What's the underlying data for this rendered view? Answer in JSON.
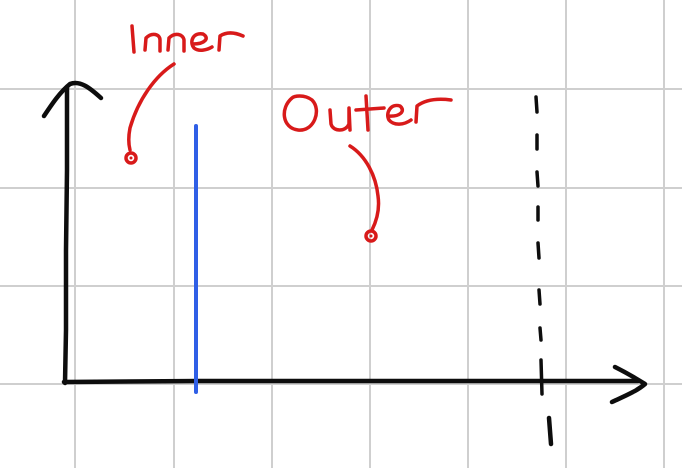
{
  "labels": {
    "inner": "Inner",
    "outer": "Outer"
  },
  "colors": {
    "grid": "#cfcfcf",
    "axes": "#0d0d0d",
    "inner_line": "#2f5fe6",
    "annotation": "#d81a1a"
  }
}
